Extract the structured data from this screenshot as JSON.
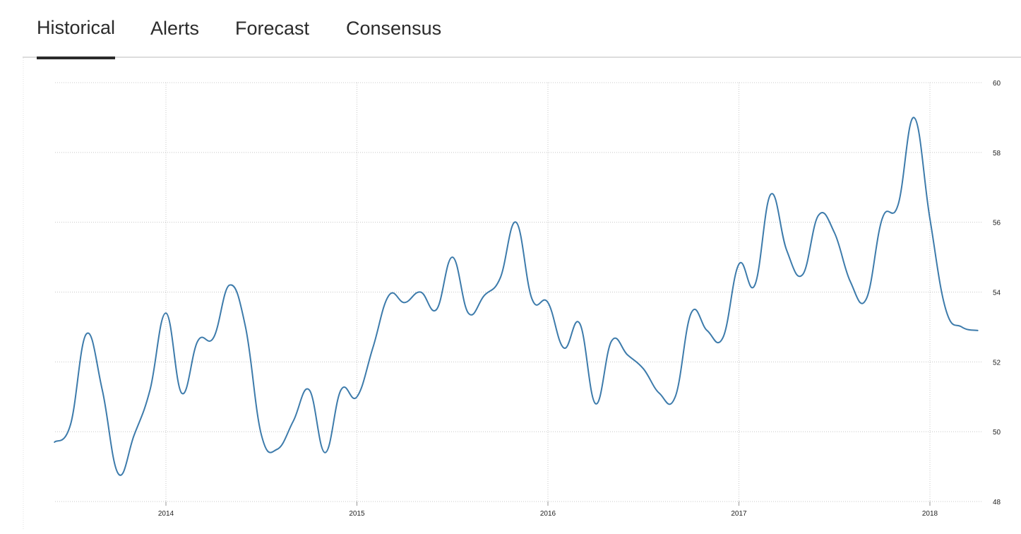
{
  "tabs": [
    {
      "label": "Historical",
      "active": true
    },
    {
      "label": "Alerts",
      "active": false
    },
    {
      "label": "Forecast",
      "active": false
    },
    {
      "label": "Consensus",
      "active": false
    }
  ],
  "colors": {
    "line": "#3d7bab",
    "grid": "#c8c8c8",
    "tab_text": "#2b2b2b",
    "tab_border": "#dddddd"
  },
  "chart_data": {
    "type": "line",
    "title": "",
    "xlabel": "",
    "ylabel": "",
    "x_ticks": [
      "2014",
      "2015",
      "2016",
      "2017",
      "2018"
    ],
    "y_ticks": [
      "48",
      "50",
      "52",
      "54",
      "56",
      "58",
      "60"
    ],
    "ylim": [
      48,
      60
    ],
    "xlim": [
      "2013-05",
      "2018-04"
    ],
    "grid": true,
    "legend": "none",
    "y_axis_side": "right",
    "series": [
      {
        "x": [
          "2013-06",
          "2013-07",
          "2013-08",
          "2013-09",
          "2013-10",
          "2013-11",
          "2013-12",
          "2014-01",
          "2014-02",
          "2014-03",
          "2014-04",
          "2014-05",
          "2014-06",
          "2014-07",
          "2014-08",
          "2014-09",
          "2014-10",
          "2014-11",
          "2014-12",
          "2015-01",
          "2015-02",
          "2015-03",
          "2015-04",
          "2015-05",
          "2015-06",
          "2015-07",
          "2015-08",
          "2015-09",
          "2015-10",
          "2015-11",
          "2015-12",
          "2016-01",
          "2016-02",
          "2016-03",
          "2016-04",
          "2016-05",
          "2016-06",
          "2016-07",
          "2016-08",
          "2016-09",
          "2016-10",
          "2016-11",
          "2016-12",
          "2017-01",
          "2017-02",
          "2017-03",
          "2017-04",
          "2017-05",
          "2017-06",
          "2017-07",
          "2017-08",
          "2017-09",
          "2017-10",
          "2017-11",
          "2017-12",
          "2018-01",
          "2018-02",
          "2018-03",
          "2018-04"
        ],
        "values": [
          49.7,
          50.2,
          52.8,
          51.2,
          48.8,
          49.9,
          51.2,
          53.4,
          51.1,
          52.6,
          52.7,
          54.2,
          53.0,
          49.9,
          49.5,
          50.3,
          51.2,
          49.4,
          51.2,
          51.0,
          52.4,
          53.9,
          53.7,
          54.0,
          53.5,
          55.0,
          53.4,
          53.9,
          54.4,
          56.0,
          53.8,
          53.7,
          52.4,
          53.1,
          50.8,
          52.6,
          52.2,
          51.8,
          51.1,
          51.0,
          53.4,
          52.9,
          52.7,
          54.8,
          54.2,
          56.8,
          55.2,
          54.5,
          56.2,
          55.7,
          54.3,
          53.8,
          56.1,
          56.5,
          59.0,
          56.1,
          53.5,
          53.0,
          52.9
        ]
      }
    ]
  }
}
